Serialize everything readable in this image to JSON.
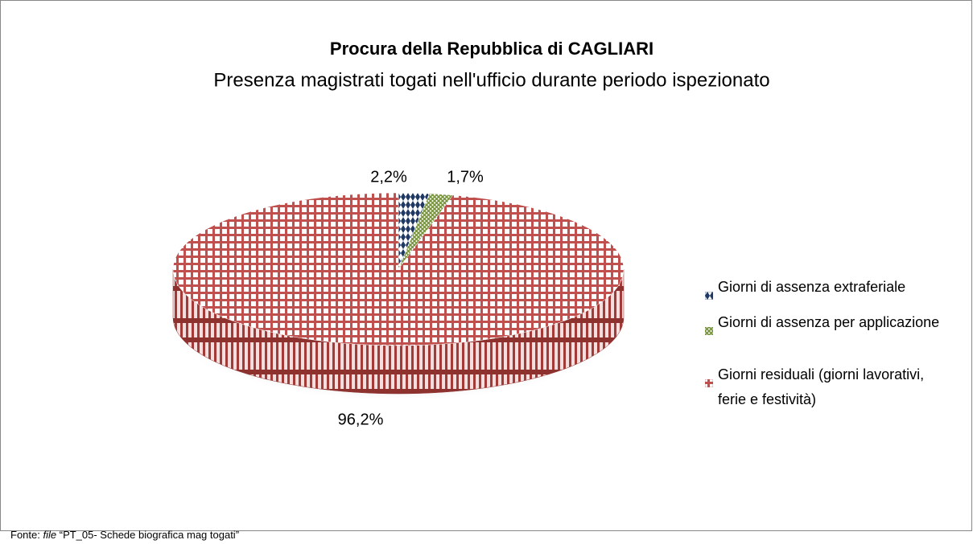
{
  "chart_data": {
    "type": "pie3d",
    "title": "Procura della Repubblica di CAGLIARI",
    "subtitle": "Presenza magistrati togati nell'ufficio durante periodo ispezionato",
    "categories": [
      "Giorni di assenza extraferiale",
      "Giorni di assenza per applicazione",
      "Giorni residuali (giorni lavorativi, ferie e festività)"
    ],
    "values": [
      2.2,
      1.7,
      96.2
    ],
    "value_labels": [
      "2,2%",
      "1,7%",
      "96,2%"
    ],
    "colors": [
      "#1f3864",
      "#77933c",
      "#c0504d"
    ],
    "legend": "right",
    "source": {
      "prefix": "Fonte:",
      "emphasis": "file",
      "text": "“PT_05- Schede biografica mag togati”"
    }
  }
}
